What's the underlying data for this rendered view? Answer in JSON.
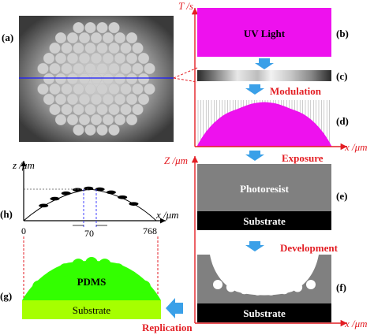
{
  "colors": {
    "red": "#e31e24",
    "magenta": "#ee11ee",
    "green": "#33ff00",
    "substrate_green": "#a6ff00",
    "arrow_blue": "#3aa0e8",
    "blue_line": "#1a1aff",
    "gray_block": "#808080",
    "black": "#000000"
  },
  "panels": {
    "a": "(a)",
    "b": "(b)",
    "c": "(c)",
    "d": "(d)",
    "e": "(e)",
    "f": "(f)",
    "g": "(g)",
    "h": "(h)"
  },
  "labels": {
    "uv_light": "UV Light",
    "modulation": "Modulation",
    "exposure": "Exposure",
    "photoresist": "Photoresist",
    "substrate_e": "Substrate",
    "development": "Development",
    "substrate_f": "Substrate",
    "pdms": "PDMS",
    "substrate_g": "Substrate",
    "replication": "Replication"
  },
  "axes": {
    "t_axis": "T /s",
    "x_axis_d": "x /μm",
    "z_axis_ef": "Z /μm",
    "x_axis_f": "x /μm",
    "z_axis_h": "z /μm",
    "x_axis_h": "x /μm",
    "tick_0": "0",
    "tick_70": "70",
    "tick_768": "768"
  }
}
